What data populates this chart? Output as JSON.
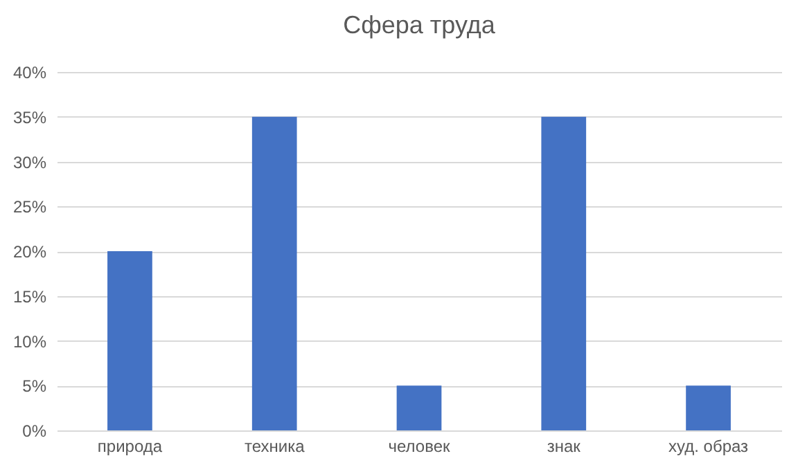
{
  "chart_data": {
    "type": "bar",
    "title": "Сфера труда",
    "categories": [
      "природа",
      "техника",
      "человек",
      "знак",
      "худ. образ"
    ],
    "values": [
      20,
      35,
      5,
      35,
      5
    ],
    "color": "#4472c4",
    "ylim": [
      0,
      40
    ],
    "yticks": [
      {
        "value": 0,
        "label": "0%"
      },
      {
        "value": 5,
        "label": "5%"
      },
      {
        "value": 10,
        "label": "10%"
      },
      {
        "value": 15,
        "label": "15%"
      },
      {
        "value": 20,
        "label": "20%"
      },
      {
        "value": 25,
        "label": "25%"
      },
      {
        "value": 30,
        "label": "30%"
      },
      {
        "value": 35,
        "label": "35%"
      },
      {
        "value": 40,
        "label": "40%"
      }
    ],
    "grid": "y"
  }
}
